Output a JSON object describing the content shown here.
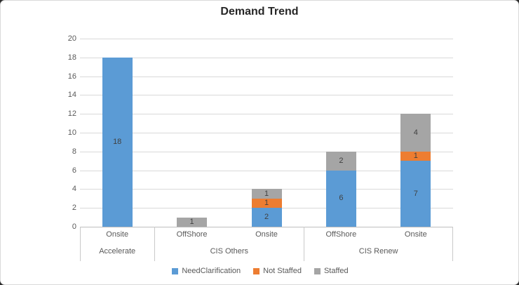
{
  "title": "Demand Trend",
  "colors": {
    "series_blue": "#5B9BD5",
    "series_orange": "#ED7D31",
    "series_gray": "#A5A5A5",
    "gridline": "#D9D9D9",
    "axis_line": "#BFBFBF",
    "axis_text": "#595959",
    "data_label_text": "#404040",
    "title_text": "#262626",
    "background": "#FFFFFF"
  },
  "chart_data": {
    "type": "bar",
    "stacked": true,
    "title": "Demand Trend",
    "xlabel": "",
    "ylabel": "",
    "ylim": [
      0,
      20
    ],
    "ytick_step": 2,
    "yticks": [
      "0",
      "2",
      "4",
      "6",
      "8",
      "10",
      "12",
      "14",
      "16",
      "18",
      "20"
    ],
    "grid": true,
    "legend_position": "bottom",
    "categories": [
      "Onsite",
      "OffShore",
      "Onsite",
      "OffShore",
      "Onsite"
    ],
    "groups": [
      {
        "label": "Accelerate",
        "span": [
          0,
          0
        ]
      },
      {
        "label": "CIS Others",
        "span": [
          1,
          2
        ]
      },
      {
        "label": "CIS Renew",
        "span": [
          3,
          4
        ]
      }
    ],
    "series": [
      {
        "name": "NeedClarification",
        "color": "#5B9BD5",
        "values": [
          18,
          0,
          2,
          6,
          7
        ]
      },
      {
        "name": "Not Staffed",
        "color": "#ED7D31",
        "values": [
          0,
          0,
          1,
          0,
          1
        ]
      },
      {
        "name": "Staffed",
        "color": "#A5A5A5",
        "values": [
          0,
          1,
          1,
          2,
          4
        ]
      }
    ],
    "data_labels": {
      "NeedClarification": [
        "18",
        "",
        "2",
        "6",
        "7"
      ],
      "Not Staffed": [
        "",
        "",
        "1",
        "",
        "1"
      ],
      "Staffed": [
        "",
        "1",
        "1",
        "2",
        "4"
      ]
    }
  },
  "legend": {
    "items": [
      {
        "label": "NeedClarification",
        "color": "#5B9BD5"
      },
      {
        "label": "Not Staffed",
        "color": "#ED7D31"
      },
      {
        "label": "Staffed",
        "color": "#A5A5A5"
      }
    ]
  }
}
